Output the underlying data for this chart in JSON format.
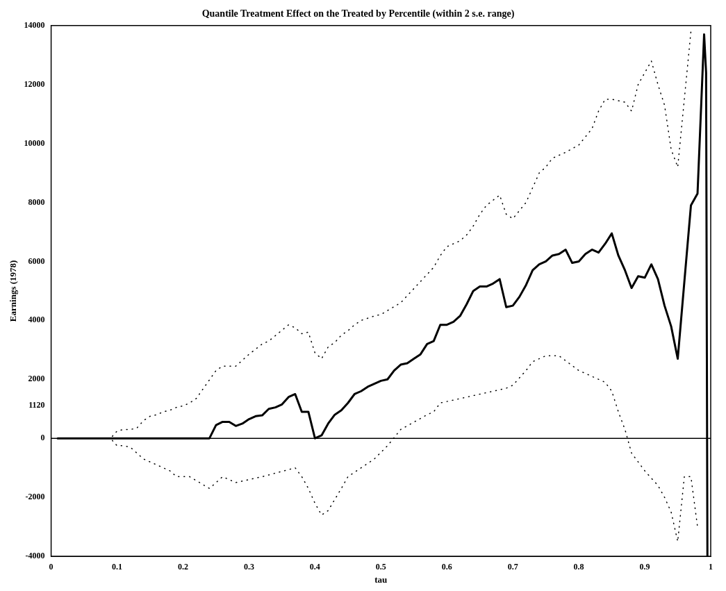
{
  "chart_data": {
    "type": "line",
    "title": "Quantile Treatment Effect on the Treated by Percentile (within 2 s.e. range)",
    "xlabel": "tau",
    "ylabel": "Earnings (1978)",
    "xlim": [
      0,
      1
    ],
    "ylim": [
      -4000,
      14000
    ],
    "xticks": [
      0,
      0.1,
      0.2,
      0.3,
      0.4,
      0.5,
      0.6,
      0.7,
      0.8,
      0.9,
      1
    ],
    "yticks": [
      -4000,
      -2000,
      0,
      1120,
      2000,
      4000,
      6000,
      8000,
      10000,
      12000,
      14000
    ],
    "grid": false,
    "legend": false,
    "ref_lines": [
      {
        "axis": "y",
        "value": 0,
        "color": "#000000",
        "line_style": "solid"
      }
    ],
    "series": [
      {
        "type": "line",
        "color": "#000000",
        "line_style": "solid",
        "x": [
          0.01,
          0.1,
          0.2,
          0.24,
          0.25,
          0.26,
          0.27,
          0.28,
          0.29,
          0.3,
          0.31,
          0.32,
          0.33,
          0.34,
          0.35,
          0.36,
          0.37,
          0.38,
          0.39,
          0.4,
          0.41,
          0.42,
          0.43,
          0.44,
          0.45,
          0.46,
          0.47,
          0.48,
          0.49,
          0.5,
          0.51,
          0.52,
          0.53,
          0.54,
          0.55,
          0.56,
          0.57,
          0.58,
          0.59,
          0.6,
          0.61,
          0.62,
          0.63,
          0.64,
          0.65,
          0.66,
          0.67,
          0.68,
          0.69,
          0.7,
          0.71,
          0.72,
          0.73,
          0.74,
          0.75,
          0.76,
          0.77,
          0.78,
          0.79,
          0.8,
          0.81,
          0.82,
          0.83,
          0.84,
          0.85,
          0.86,
          0.87,
          0.88,
          0.89,
          0.9,
          0.91,
          0.92,
          0.93,
          0.94,
          0.95,
          0.96,
          0.97,
          0.98,
          0.99,
          0.993,
          0.995
        ],
        "values": [
          0,
          0,
          0,
          0,
          450,
          560,
          560,
          420,
          500,
          650,
          750,
          780,
          1000,
          1050,
          1150,
          1400,
          1500,
          900,
          900,
          0,
          100,
          500,
          800,
          950,
          1200,
          1500,
          1600,
          1750,
          1850,
          1950,
          2000,
          2300,
          2500,
          2550,
          2700,
          2850,
          3200,
          3300,
          3850,
          3850,
          3950,
          4150,
          4550,
          5000,
          5150,
          5150,
          5250,
          5400,
          4450,
          4500,
          4800,
          5200,
          5700,
          5900,
          6000,
          6200,
          6250,
          6400,
          5950,
          6000,
          6250,
          6400,
          6300,
          6600,
          6950,
          6200,
          5700,
          5100,
          5500,
          5450,
          5900,
          5400,
          4500,
          3800,
          2700,
          5300,
          7900,
          8300,
          13700,
          12400,
          -4000
        ]
      },
      {
        "type": "line",
        "color": "#000000",
        "line_style": "dotted",
        "x": [
          0.01,
          0.09,
          0.1,
          0.11,
          0.12,
          0.13,
          0.14,
          0.15,
          0.16,
          0.17,
          0.18,
          0.19,
          0.2,
          0.21,
          0.22,
          0.25,
          0.26,
          0.28,
          0.3,
          0.32,
          0.33,
          0.36,
          0.37,
          0.38,
          0.39,
          0.4,
          0.41,
          0.42,
          0.43,
          0.44,
          0.45,
          0.46,
          0.47,
          0.49,
          0.5,
          0.53,
          0.58,
          0.59,
          0.6,
          0.62,
          0.63,
          0.64,
          0.65,
          0.66,
          0.68,
          0.69,
          0.7,
          0.72,
          0.73,
          0.74,
          0.75,
          0.76,
          0.77,
          0.78,
          0.8,
          0.82,
          0.83,
          0.84,
          0.85,
          0.87,
          0.88,
          0.89,
          0.9,
          0.91,
          0.92,
          0.93,
          0.94,
          0.95,
          0.96,
          0.97
        ],
        "values": [
          0,
          0,
          250,
          300,
          300,
          350,
          600,
          750,
          800,
          900,
          950,
          1050,
          1100,
          1200,
          1350,
          2300,
          2450,
          2450,
          2850,
          3200,
          3300,
          3850,
          3750,
          3550,
          3600,
          2900,
          2700,
          3100,
          3250,
          3500,
          3650,
          3850,
          4000,
          4150,
          4200,
          4600,
          5800,
          6200,
          6500,
          6700,
          6900,
          7200,
          7600,
          7900,
          8250,
          7600,
          7450,
          8000,
          8500,
          9000,
          9200,
          9500,
          9600,
          9700,
          9950,
          10500,
          11100,
          11500,
          11500,
          11400,
          11100,
          12000,
          12400,
          12800,
          12000,
          11300,
          9800,
          9200,
          11500,
          13800
        ]
      },
      {
        "type": "line",
        "color": "#000000",
        "line_style": "dotted",
        "x": [
          0.01,
          0.09,
          0.1,
          0.11,
          0.12,
          0.13,
          0.14,
          0.17,
          0.18,
          0.19,
          0.21,
          0.24,
          0.26,
          0.28,
          0.3,
          0.32,
          0.37,
          0.38,
          0.39,
          0.4,
          0.41,
          0.42,
          0.44,
          0.45,
          0.47,
          0.49,
          0.51,
          0.53,
          0.57,
          0.58,
          0.59,
          0.69,
          0.7,
          0.72,
          0.73,
          0.75,
          0.77,
          0.8,
          0.84,
          0.85,
          0.86,
          0.87,
          0.88,
          0.9,
          0.92,
          0.93,
          0.94,
          0.95,
          0.96,
          0.97,
          0.98
        ],
        "values": [
          0,
          0,
          -250,
          -250,
          -300,
          -500,
          -700,
          -1000,
          -1100,
          -1300,
          -1300,
          -1700,
          -1300,
          -1500,
          -1400,
          -1300,
          -1000,
          -1300,
          -1700,
          -2200,
          -2600,
          -2450,
          -1700,
          -1300,
          -1000,
          -700,
          -250,
          300,
          800,
          900,
          1200,
          1700,
          1800,
          2300,
          2600,
          2800,
          2800,
          2300,
          1900,
          1600,
          900,
          300,
          -500,
          -1100,
          -1600,
          -2000,
          -2500,
          -3500,
          -1300,
          -1300,
          -3000
        ]
      }
    ]
  }
}
